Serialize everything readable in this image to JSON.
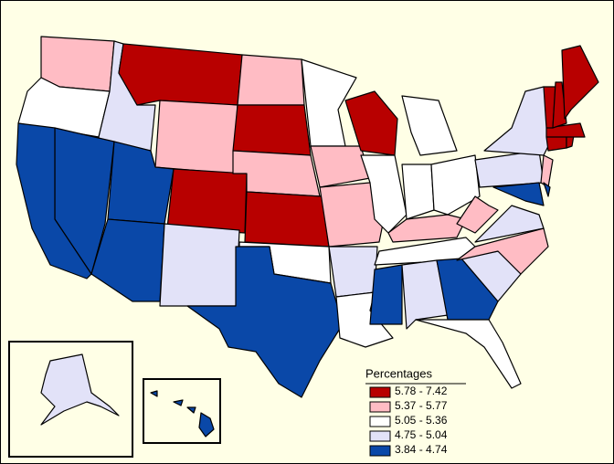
{
  "legend": {
    "title": "Percentages",
    "items": [
      {
        "label": "5.78 - 7.42",
        "color": "#b80000"
      },
      {
        "label": "5.37 - 5.77",
        "color": "#ffbcc4"
      },
      {
        "label": "5.05 - 5.36",
        "color": "#ffffff"
      },
      {
        "label": "4.75 - 5.04",
        "color": "#e2e2f8"
      },
      {
        "label": "3.84 - 4.74",
        "color": "#0a48a8"
      }
    ]
  }
}
